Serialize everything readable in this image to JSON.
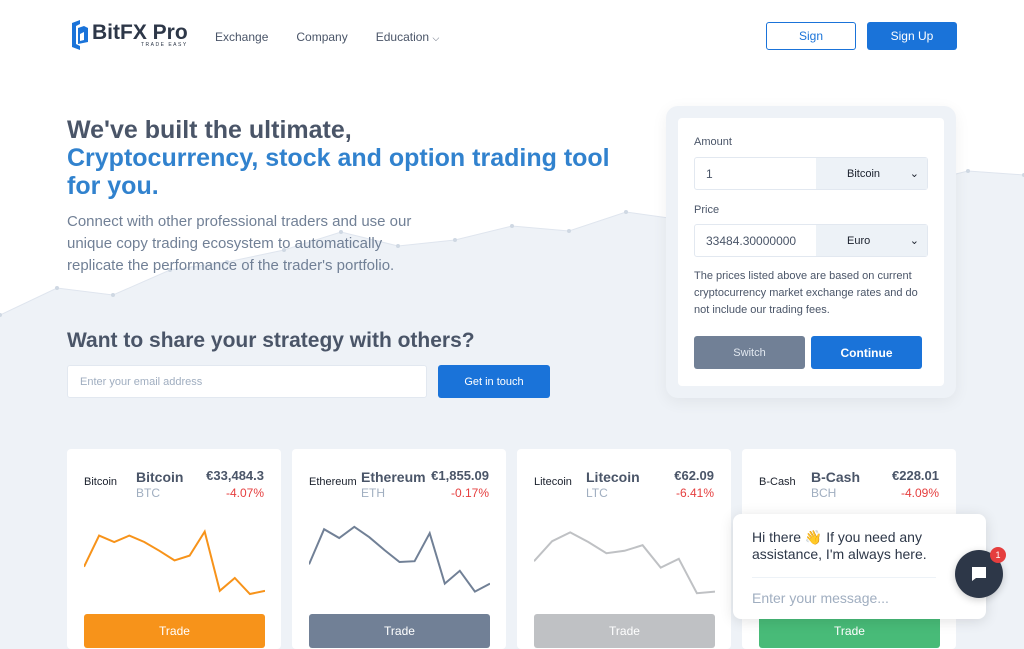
{
  "brand": {
    "name": "BitFX Pro",
    "tagline": "TRADE EASY",
    "accent": "#1a73d9"
  },
  "nav": {
    "items": [
      {
        "label": "Exchange"
      },
      {
        "label": "Company"
      },
      {
        "label": "Education"
      }
    ],
    "sign_label": "Sign",
    "signup_label": "Sign Up"
  },
  "hero": {
    "title_line1": "We've built the ultimate,",
    "title_highlight": "Cryptocurrency, stock and option trading tool for you.",
    "lead": "Connect with other professional traders and use our unique copy trading ecosystem to automatically replicate the performance of the trader's portfolio."
  },
  "share": {
    "title": "Want to share your strategy with others?",
    "email_placeholder": "Enter your email address",
    "button": "Get in touch"
  },
  "converter": {
    "amount_label": "Amount",
    "amount_value": "1",
    "amount_currency": "Bitcoin",
    "price_label": "Price",
    "price_value": "33484.30000000",
    "price_currency": "Euro",
    "note": "The prices listed above are based on current cryptocurrency market exchange rates and do not include our trading fees.",
    "switch_label": "Switch",
    "continue_label": "Continue"
  },
  "coins": [
    {
      "img_alt": "Bitcoin",
      "name": "Bitcoin",
      "symbol": "BTC",
      "price": "€33,484.3",
      "change": "-4.07%",
      "color": "#f7931a",
      "trade": "Trade",
      "spark": [
        34,
        73,
        65,
        73,
        65,
        54,
        42,
        48,
        78,
        4,
        20,
        0,
        4
      ]
    },
    {
      "img_alt": "Ethereum",
      "name": "Ethereum",
      "symbol": "ETH",
      "price": "€1,855.09",
      "change": "-0.17%",
      "color": "#718096",
      "trade": "Trade",
      "spark": [
        37,
        81,
        70,
        84,
        71,
        55,
        40,
        41,
        76,
        13,
        29,
        3,
        13
      ]
    },
    {
      "img_alt": "Litecoin",
      "name": "Litecoin",
      "symbol": "LTC",
      "price": "€62.09",
      "change": "-6.41%",
      "color": "#bfc1c4",
      "trade": "Trade",
      "spark": [
        41,
        66,
        77,
        65,
        51,
        54,
        61,
        33,
        44,
        1,
        3
      ]
    },
    {
      "img_alt": "B-Cash",
      "name": "B-Cash",
      "symbol": "BCH",
      "price": "€228.01",
      "change": "-4.09%",
      "color": "#48bb78",
      "trade": "Trade",
      "spark": []
    }
  ],
  "chat": {
    "message": "Hi there 👋 If you need any assistance, I'm always here.",
    "placeholder": "Enter your message...",
    "badge": "1"
  }
}
